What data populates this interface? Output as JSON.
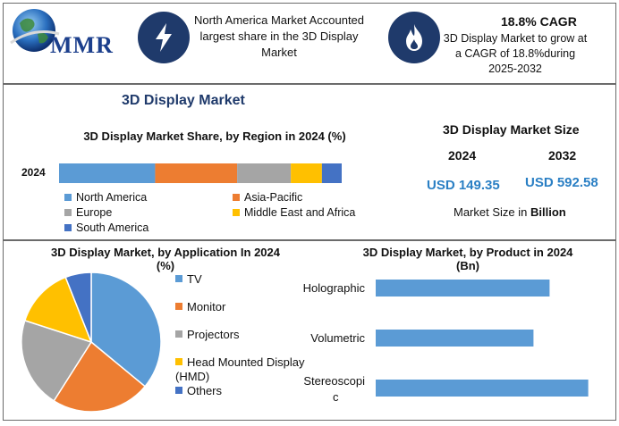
{
  "header": {
    "logo_text": "MMR",
    "card1_text": "North America Market Accounted largest share in the 3D Display Market",
    "card2_title": "18.8% CAGR",
    "card2_text": "3D Display Market to grow at a CAGR of 18.8%during 2025-2032"
  },
  "main_title": "3D Display Market",
  "colors": {
    "blue": "#5b9bd5",
    "orange": "#ed7d31",
    "gray": "#a5a5a5",
    "yellow": "#ffc000",
    "darkblue": "#4472c4",
    "navy": "#1f3a6b",
    "value_blue": "#2a7fc4"
  },
  "icons": {
    "card1": "lightning-icon",
    "card2": "flame-icon"
  },
  "market_size": {
    "title": "3D Display Market Size",
    "year1": "2024",
    "year2": "2032",
    "value1": "USD 149.35",
    "value2": "USD 592.58",
    "unit_prefix": "Market Size in ",
    "unit_bold": "Billion"
  },
  "chart_data": [
    {
      "type": "bar",
      "orientation": "horizontal-stacked",
      "title": "3D Display Market Share, by Region in 2024 (%)",
      "categories": [
        "2024"
      ],
      "series": [
        {
          "name": "North America",
          "values": [
            34
          ]
        },
        {
          "name": "Asia-Pacific",
          "values": [
            29
          ]
        },
        {
          "name": "Europe",
          "values": [
            19
          ]
        },
        {
          "name": "Middle East and Africa",
          "values": [
            11
          ]
        },
        {
          "name": "South America",
          "values": [
            7
          ]
        }
      ],
      "xlim": [
        0,
        100
      ]
    },
    {
      "type": "pie",
      "title_line1": "3D Display Market, by Application In 2024",
      "title_line2": "(%)",
      "labels": [
        "TV",
        "Monitor",
        "Projectors",
        "Head Mounted Display (HMD)",
        "Others"
      ],
      "values": [
        36,
        23,
        21,
        14,
        6
      ]
    },
    {
      "type": "bar",
      "orientation": "horizontal",
      "title_line1": "3D Display Market, by Product in 2024",
      "title_line2": "(Bn)",
      "categories": [
        "Holographic",
        "Volumetric",
        "Stereoscopic"
      ],
      "category_lines": [
        [
          "Holographic"
        ],
        [
          "Volumetric"
        ],
        [
          "Stereoscopi",
          "c"
        ]
      ],
      "values": [
        54,
        49,
        66
      ],
      "xlim": [
        0,
        70
      ]
    }
  ]
}
